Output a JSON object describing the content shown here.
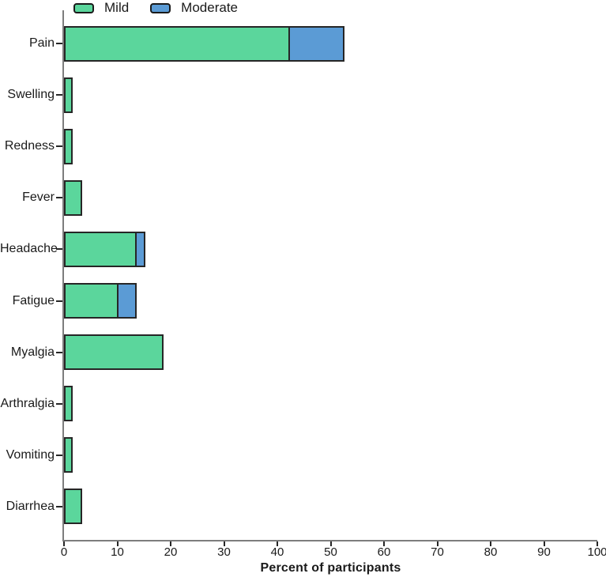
{
  "chart_data": {
    "type": "bar",
    "orientation": "horizontal",
    "stacked": true,
    "title": "",
    "xlabel": "Percent of participants",
    "ylabel": "",
    "xlim": [
      0,
      100
    ],
    "x_ticks": [
      0,
      10,
      20,
      30,
      40,
      50,
      60,
      70,
      80,
      90,
      100
    ],
    "grid": false,
    "legend_position": "top",
    "categories": [
      "Pain",
      "Swelling",
      "Redness",
      "Fever",
      "Headache",
      "Fatigue",
      "Myalgia",
      "Arthralgia",
      "Vomiting",
      "Diarrhea"
    ],
    "series": [
      {
        "name": "Mild",
        "color": "#5bd69c",
        "values": [
          42.4,
          1.7,
          1.7,
          3.4,
          13.6,
          10.2,
          18.6,
          1.7,
          1.7,
          3.4
        ]
      },
      {
        "name": "Moderate",
        "color": "#5b9bd5",
        "values": [
          10.2,
          0,
          0,
          0,
          1.7,
          3.4,
          0,
          0,
          0,
          0
        ]
      }
    ],
    "colors": {
      "bar_border": "#262626",
      "axis_line": "#7d7d7d",
      "tick": "#262626",
      "text": "#1a1a1a",
      "background": "#ffffff"
    }
  }
}
